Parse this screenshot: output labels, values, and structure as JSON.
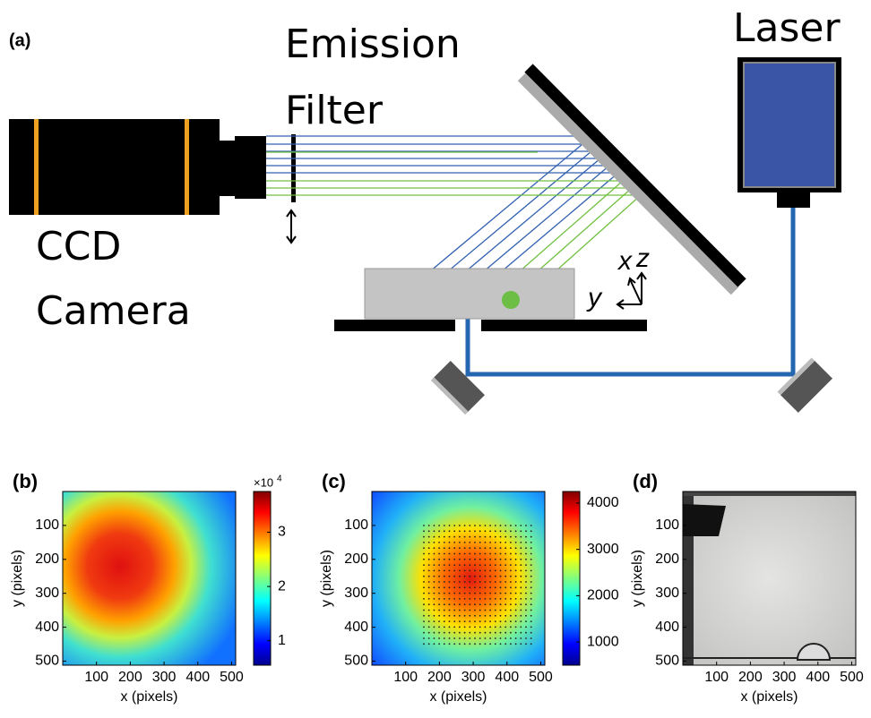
{
  "panel_a": {
    "label": "(a)",
    "filter_label": [
      "Emission",
      "Filter"
    ],
    "laser_label": "Laser",
    "camera_label": [
      "CCD",
      "Camera"
    ],
    "axes": {
      "x": "x",
      "z": "z",
      "y": "y"
    }
  },
  "panels": [
    {
      "label": "(b)",
      "xlabel": "x (pixels)",
      "ylabel": "y (pixels)",
      "colormap": "jet",
      "xlim": [
        0,
        512
      ],
      "ylim": [
        512,
        0
      ],
      "xticks": [
        100,
        200,
        300,
        400,
        500
      ],
      "yticks": [
        100,
        200,
        300,
        400,
        500
      ],
      "colorbar": {
        "lim": [
          0.55,
          3.75
        ],
        "ticks": [
          1,
          2,
          3
        ],
        "multiplier": {
          "base": "×10",
          "exponent": "4"
        }
      }
    },
    {
      "label": "(c)",
      "xlabel": "x (pixels)",
      "ylabel": "y (pixels)",
      "colormap": "jet",
      "xlim": [
        0,
        512
      ],
      "ylim": [
        512,
        0
      ],
      "xticks": [
        100,
        200,
        300,
        400,
        500
      ],
      "yticks": [
        100,
        200,
        300,
        400,
        500
      ],
      "colorbar": {
        "lim": [
          500,
          4250
        ],
        "ticks": [
          1000,
          2000,
          3000,
          4000
        ]
      }
    },
    {
      "label": "(d)",
      "xlabel": "x (pixels)",
      "ylabel": "y (pixels)",
      "colormap": "gray",
      "xlim": [
        0,
        512
      ],
      "ylim": [
        512,
        0
      ],
      "xticks": [
        100,
        200,
        300,
        400,
        500
      ],
      "yticks": [
        100,
        200,
        300,
        400,
        500
      ]
    }
  ]
}
